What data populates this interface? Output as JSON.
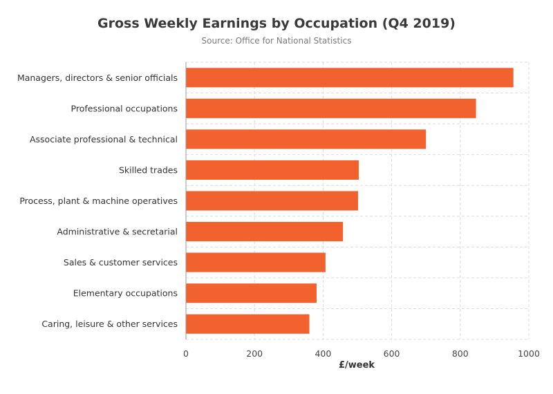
{
  "chart_data": {
    "type": "bar",
    "orientation": "horizontal",
    "title": "Gross Weekly Earnings by Occupation (Q4 2019)",
    "subtitle": "Source: Office for National Statistics",
    "xlabel": "£/week",
    "ylabel": "",
    "xlim": [
      0,
      1000
    ],
    "xticks": [
      0,
      200,
      400,
      600,
      800,
      1000
    ],
    "grid": true,
    "categories": [
      "Managers, directors & senior officials",
      "Professional occupations",
      "Associate professional & technical",
      "Skilled trades",
      "Process, plant & machine operatives",
      "Administrative & secretarial",
      "Sales & customer services",
      "Elementary occupations",
      "Caring, leisure & other services"
    ],
    "values": [
      955,
      846,
      700,
      504,
      502,
      458,
      407,
      381,
      360
    ],
    "bar_color": "#f2622e"
  }
}
